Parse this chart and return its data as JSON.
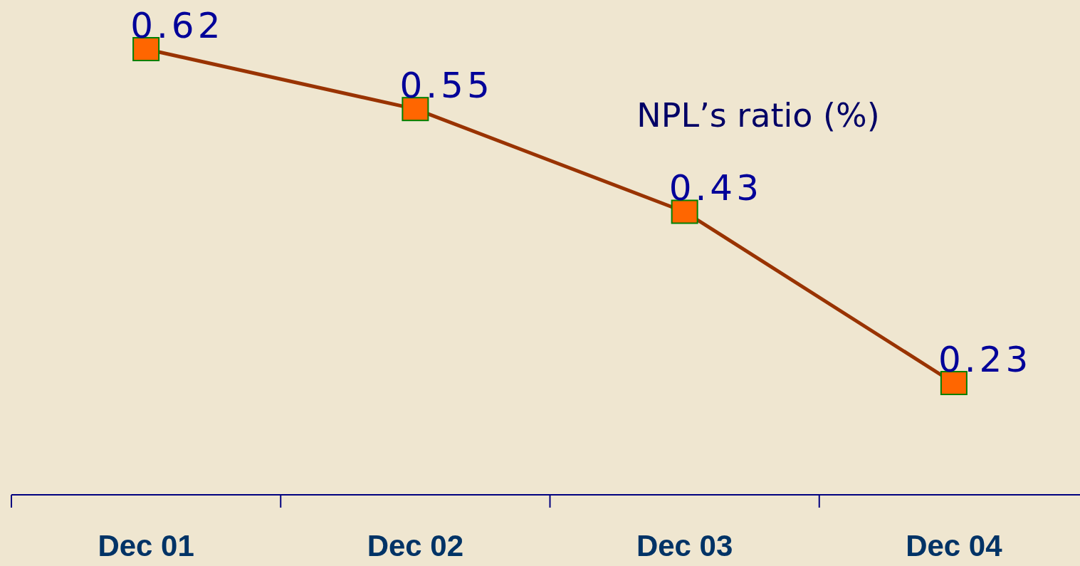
{
  "chart_data": {
    "type": "line",
    "title": "NPL’s ratio (%)",
    "categories": [
      "Dec 01",
      "Dec 02",
      "Dec 03",
      "Dec 04"
    ],
    "series": [
      {
        "color": "#993300",
        "values": [
          0.62,
          0.55,
          0.43,
          0.23
        ]
      }
    ],
    "tick_labels": "x",
    "marker": "square",
    "line_style": "solid",
    "data_labels": true,
    "grid": false
  }
}
